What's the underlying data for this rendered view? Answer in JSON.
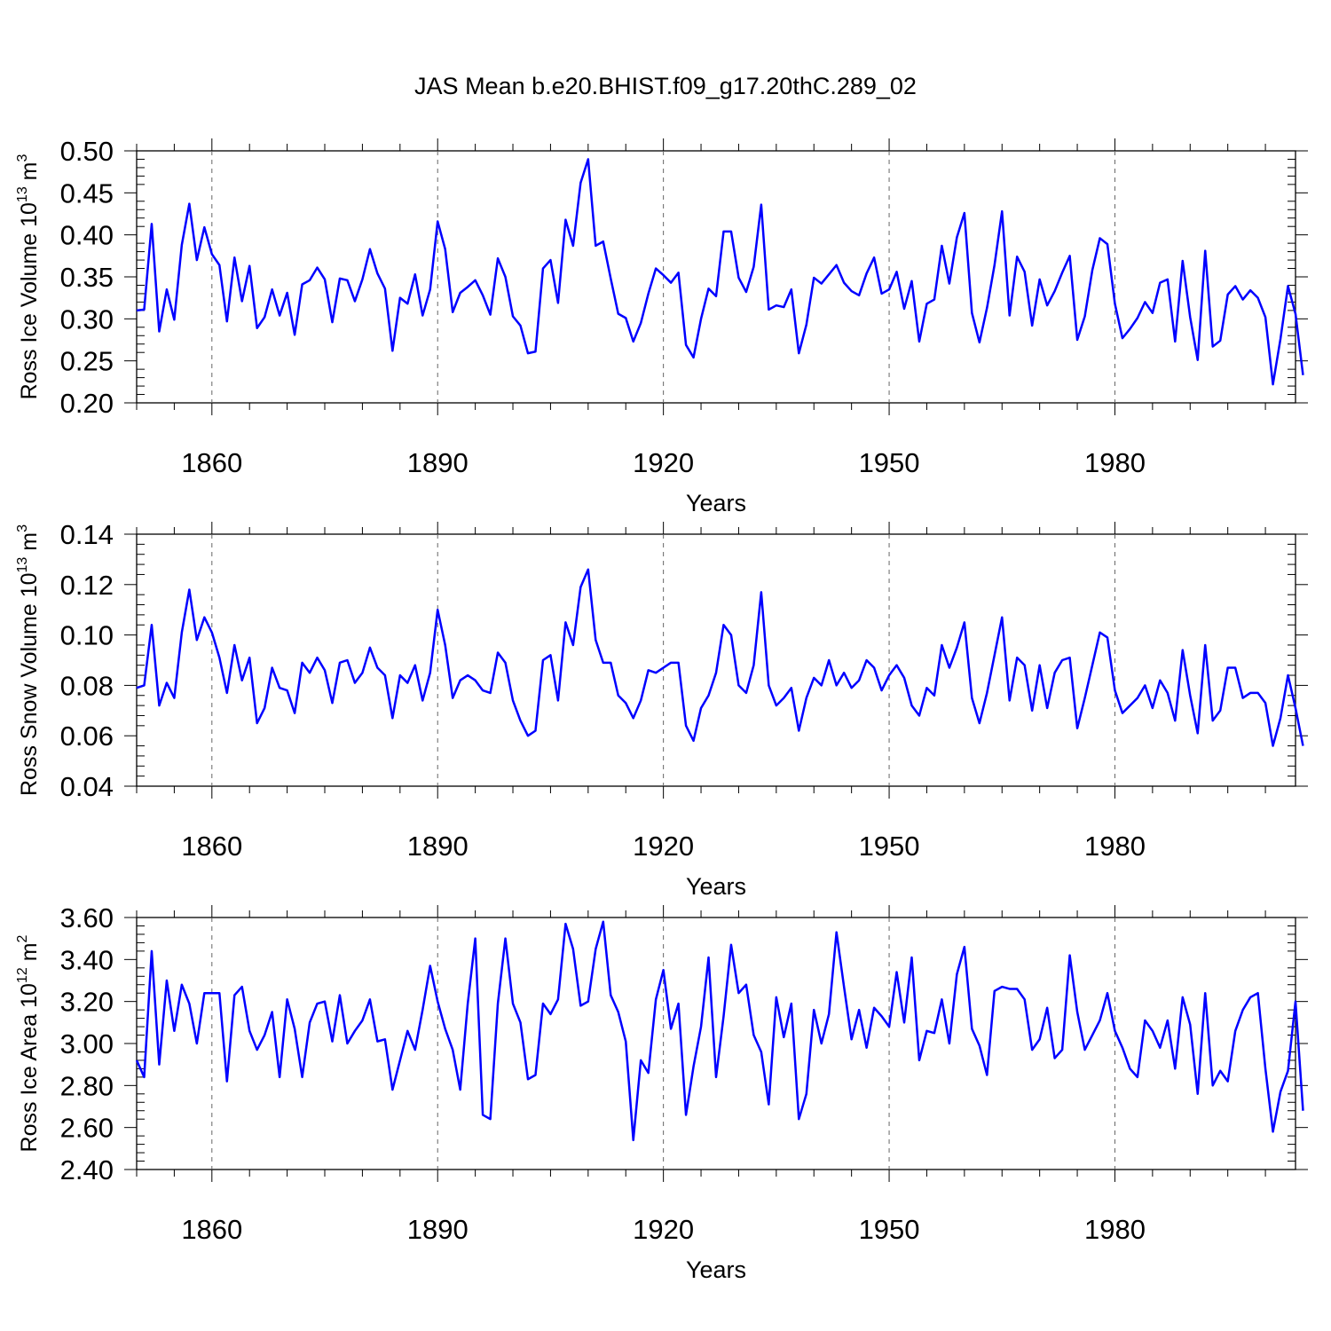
{
  "chart_data": {
    "type": "line",
    "title": "JAS Mean b.e20.BHIST.f09_g17.20thC.289_02",
    "x_start": 1850,
    "xlim": [
      1850,
      2004
    ],
    "x_ticks": [
      1860,
      1890,
      1920,
      1950,
      1980
    ],
    "x_tick_labels": [
      "1860",
      "1890",
      "1920",
      "1950",
      "1980"
    ],
    "grid": "dashed vertical lines at major x ticks",
    "panels": [
      {
        "ylabel_main": "Ross Ice Volume 10",
        "ylabel_exp": "13",
        "ylabel_unit": " m",
        "ylabel_unit_exp": "3",
        "xlabel": "Years",
        "ylim": [
          0.2,
          0.5
        ],
        "y_ticks": [
          0.2,
          0.25,
          0.3,
          0.35,
          0.4,
          0.45,
          0.5
        ],
        "y_tick_labels": [
          "0.20",
          "0.25",
          "0.30",
          "0.35",
          "0.40",
          "0.45",
          "0.50"
        ],
        "series": [
          {
            "name": "Ross Ice Volume",
            "color": "#0000ff",
            "values": [
              0.31,
              0.311,
              0.413,
              0.285,
              0.335,
              0.299,
              0.388,
              0.437,
              0.37,
              0.409,
              0.377,
              0.364,
              0.297,
              0.373,
              0.321,
              0.363,
              0.289,
              0.302,
              0.335,
              0.304,
              0.331,
              0.281,
              0.341,
              0.346,
              0.361,
              0.347,
              0.296,
              0.348,
              0.346,
              0.321,
              0.347,
              0.383,
              0.354,
              0.336,
              0.262,
              0.325,
              0.318,
              0.353,
              0.304,
              0.335,
              0.416,
              0.383,
              0.308,
              0.331,
              0.338,
              0.346,
              0.328,
              0.305,
              0.372,
              0.35,
              0.303,
              0.292,
              0.259,
              0.261,
              0.36,
              0.37,
              0.319,
              0.418,
              0.387,
              0.462,
              0.49,
              0.387,
              0.392,
              0.348,
              0.306,
              0.301,
              0.273,
              0.295,
              0.33,
              0.36,
              0.352,
              0.343,
              0.355,
              0.269,
              0.254,
              0.3,
              0.336,
              0.327,
              0.404,
              0.404,
              0.349,
              0.332,
              0.362,
              0.436,
              0.311,
              0.316,
              0.314,
              0.335,
              0.259,
              0.293,
              0.349,
              0.342,
              0.353,
              0.364,
              0.343,
              0.333,
              0.328,
              0.354,
              0.373,
              0.33,
              0.335,
              0.356,
              0.312,
              0.345,
              0.273,
              0.318,
              0.323,
              0.387,
              0.342,
              0.397,
              0.426,
              0.307,
              0.272,
              0.313,
              0.364,
              0.428,
              0.304,
              0.374,
              0.356,
              0.292,
              0.347,
              0.316,
              0.333,
              0.355,
              0.375,
              0.275,
              0.303,
              0.358,
              0.396,
              0.389,
              0.318,
              0.277,
              0.288,
              0.301,
              0.32,
              0.307,
              0.343,
              0.347,
              0.273,
              0.369,
              0.302,
              0.251,
              0.381,
              0.267,
              0.274,
              0.329,
              0.339,
              0.323,
              0.334,
              0.325,
              0.302,
              0.222,
              0.276,
              0.339,
              0.306,
              0.233
            ]
          }
        ]
      },
      {
        "ylabel_main": "Ross Snow Volume 10",
        "ylabel_exp": "13",
        "ylabel_unit": " m",
        "ylabel_unit_exp": "3",
        "xlabel": "Years",
        "ylim": [
          0.04,
          0.14
        ],
        "y_ticks": [
          0.04,
          0.06,
          0.08,
          0.1,
          0.12,
          0.14
        ],
        "y_tick_labels": [
          "0.04",
          "0.06",
          "0.08",
          "0.10",
          "0.12",
          "0.14"
        ],
        "series": [
          {
            "name": "Ross Snow Volume",
            "color": "#0000ff",
            "values": [
              0.079,
              0.08,
              0.104,
              0.072,
              0.081,
              0.075,
              0.101,
              0.118,
              0.098,
              0.107,
              0.101,
              0.091,
              0.077,
              0.096,
              0.082,
              0.091,
              0.065,
              0.071,
              0.087,
              0.079,
              0.078,
              0.069,
              0.089,
              0.085,
              0.091,
              0.086,
              0.073,
              0.089,
              0.09,
              0.081,
              0.085,
              0.095,
              0.087,
              0.084,
              0.067,
              0.084,
              0.081,
              0.088,
              0.074,
              0.085,
              0.11,
              0.096,
              0.075,
              0.082,
              0.084,
              0.082,
              0.078,
              0.077,
              0.093,
              0.089,
              0.074,
              0.066,
              0.06,
              0.062,
              0.09,
              0.092,
              0.074,
              0.105,
              0.096,
              0.119,
              0.126,
              0.098,
              0.089,
              0.089,
              0.076,
              0.073,
              0.067,
              0.074,
              0.086,
              0.085,
              0.087,
              0.089,
              0.089,
              0.064,
              0.058,
              0.071,
              0.076,
              0.085,
              0.104,
              0.1,
              0.08,
              0.077,
              0.088,
              0.117,
              0.08,
              0.072,
              0.075,
              0.079,
              0.062,
              0.075,
              0.083,
              0.08,
              0.09,
              0.08,
              0.085,
              0.079,
              0.082,
              0.09,
              0.087,
              0.078,
              0.084,
              0.088,
              0.083,
              0.072,
              0.068,
              0.079,
              0.076,
              0.096,
              0.087,
              0.095,
              0.105,
              0.075,
              0.065,
              0.077,
              0.092,
              0.107,
              0.074,
              0.091,
              0.088,
              0.07,
              0.088,
              0.071,
              0.085,
              0.09,
              0.091,
              0.063,
              0.075,
              0.088,
              0.101,
              0.099,
              0.078,
              0.069,
              0.072,
              0.075,
              0.08,
              0.071,
              0.082,
              0.077,
              0.066,
              0.094,
              0.076,
              0.061,
              0.096,
              0.066,
              0.07,
              0.087,
              0.087,
              0.075,
              0.077,
              0.077,
              0.073,
              0.056,
              0.067,
              0.084,
              0.071,
              0.056
            ]
          }
        ]
      },
      {
        "ylabel_main": "Ross Ice Area 10",
        "ylabel_exp": "12",
        "ylabel_unit": " m",
        "ylabel_unit_exp": "2",
        "xlabel": "Years",
        "ylim": [
          2.4,
          3.6
        ],
        "y_ticks": [
          2.4,
          2.6,
          2.8,
          3.0,
          3.2,
          3.4,
          3.6
        ],
        "y_tick_labels": [
          "2.40",
          "2.60",
          "2.80",
          "3.00",
          "3.20",
          "3.40",
          "3.60"
        ],
        "series": [
          {
            "name": "Ross Ice Area",
            "color": "#0000ff",
            "values": [
              2.92,
              2.84,
              3.44,
              2.9,
              3.3,
              3.06,
              3.28,
              3.19,
              3.0,
              3.24,
              3.24,
              3.24,
              2.82,
              3.23,
              3.27,
              3.06,
              2.97,
              3.04,
              3.15,
              2.84,
              3.21,
              3.07,
              2.84,
              3.1,
              3.19,
              3.2,
              3.01,
              3.23,
              3.0,
              3.06,
              3.11,
              3.21,
              3.01,
              3.02,
              2.78,
              2.92,
              3.06,
              2.97,
              3.16,
              3.37,
              3.2,
              3.07,
              2.97,
              2.78,
              3.19,
              3.5,
              2.66,
              2.64,
              3.19,
              3.5,
              3.19,
              3.1,
              2.83,
              2.85,
              3.19,
              3.14,
              3.21,
              3.57,
              3.45,
              3.18,
              3.2,
              3.45,
              3.58,
              3.23,
              3.15,
              3.01,
              2.54,
              2.92,
              2.86,
              3.21,
              3.35,
              3.07,
              3.19,
              2.66,
              2.89,
              3.08,
              3.41,
              2.84,
              3.13,
              3.47,
              3.24,
              3.28,
              3.04,
              2.96,
              2.71,
              3.22,
              3.03,
              3.19,
              2.64,
              2.76,
              3.16,
              3.0,
              3.14,
              3.53,
              3.27,
              3.02,
              3.16,
              2.98,
              3.17,
              3.13,
              3.08,
              3.34,
              3.1,
              3.41,
              2.92,
              3.06,
              3.05,
              3.21,
              3.0,
              3.33,
              3.46,
              3.07,
              2.99,
              2.85,
              3.25,
              3.27,
              3.26,
              3.26,
              3.21,
              2.97,
              3.02,
              3.17,
              2.93,
              2.97,
              3.42,
              3.15,
              2.97,
              3.04,
              3.11,
              3.24,
              3.06,
              2.98,
              2.88,
              2.84,
              3.11,
              3.06,
              2.98,
              3.11,
              2.88,
              3.22,
              3.09,
              2.76,
              3.24,
              2.8,
              2.87,
              2.82,
              3.06,
              3.16,
              3.22,
              3.24,
              2.88,
              2.58,
              2.77,
              2.87,
              3.2,
              2.68
            ]
          }
        ]
      }
    ]
  }
}
